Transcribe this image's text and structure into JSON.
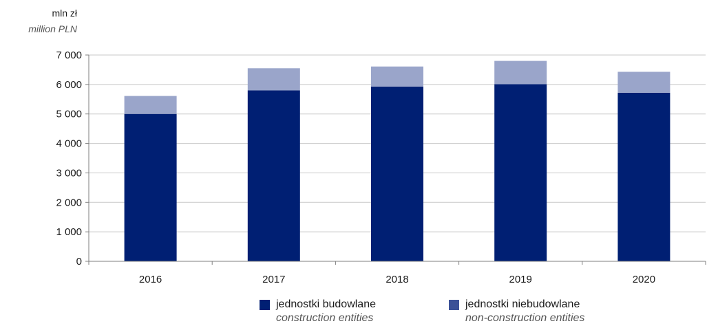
{
  "chart_data": {
    "type": "bar",
    "stacked": true,
    "unit_label_pl": "mln zł",
    "unit_label_en": "million PLN",
    "categories": [
      "2016",
      "2017",
      "2018",
      "2019",
      "2020"
    ],
    "series": [
      {
        "name_pl": "jednostki budowlane",
        "name_en": "construction entities",
        "color": "#001f73",
        "values": [
          5000,
          5800,
          5930,
          6010,
          5720
        ]
      },
      {
        "name_pl": "jednostki niebudowlane",
        "name_en": "non-construction entities",
        "color": "#9aa5ca",
        "values": [
          610,
          750,
          680,
          790,
          710
        ]
      }
    ],
    "ylim": [
      0,
      7000
    ],
    "yticks": [
      0,
      1000,
      2000,
      3000,
      4000,
      5000,
      6000,
      7000
    ],
    "ytick_labels": [
      "0",
      "1 000",
      "2 000",
      "3 000",
      "4 000",
      "5 000",
      "6 000",
      "7 000"
    ],
    "grid": true,
    "legend_position": "bottom",
    "legend_swatch_colors": [
      "#001f73",
      "#3b5197"
    ]
  }
}
